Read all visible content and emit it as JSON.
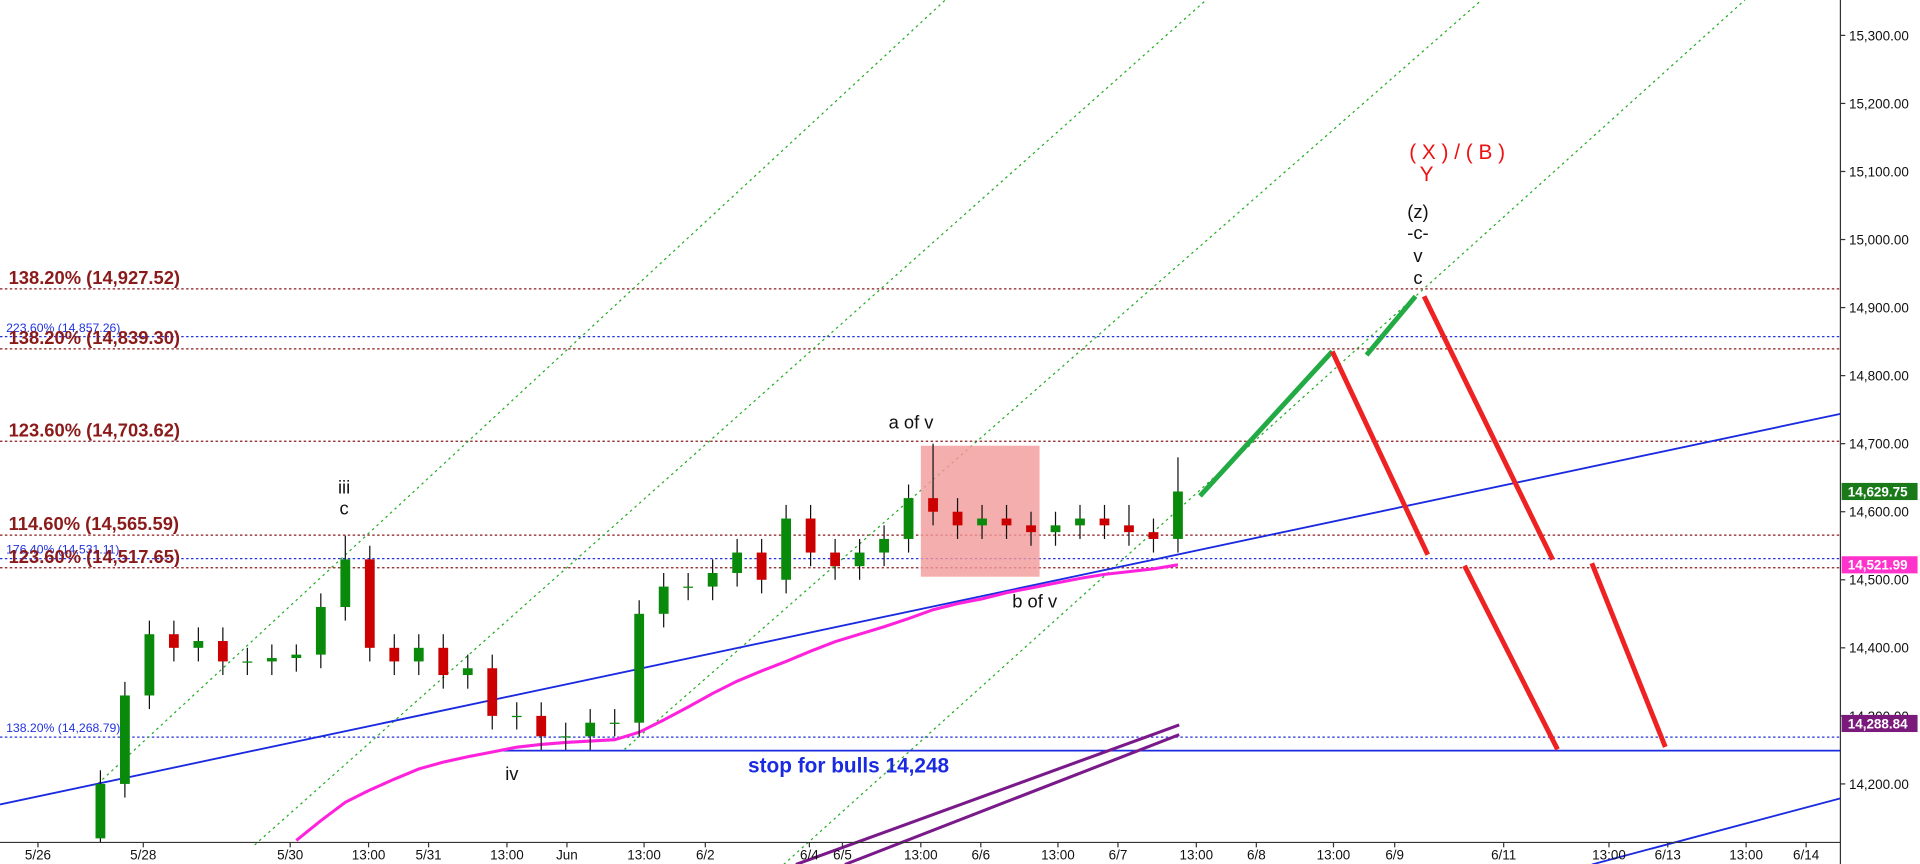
{
  "chart_data": {
    "type": "candlestick",
    "ylim": [
      14114,
      15352
    ],
    "yticks": [
      {
        "value": 14200,
        "label": "14,200.00"
      },
      {
        "value": 14300,
        "label": "14,300.00"
      },
      {
        "value": 14400,
        "label": "14,400.00"
      },
      {
        "value": 14500,
        "label": "14,500.00"
      },
      {
        "value": 14600,
        "label": "14,600.00"
      },
      {
        "value": 14700,
        "label": "14,700.00"
      },
      {
        "value": 14800,
        "label": "14,800.00"
      },
      {
        "value": 14900,
        "label": "14,900.00"
      },
      {
        "value": 15000,
        "label": "15,000.00"
      },
      {
        "value": 15100,
        "label": "15,100.00"
      },
      {
        "value": 15200,
        "label": "15,200.00"
      },
      {
        "value": 15300,
        "label": "15,300.00"
      }
    ],
    "x_tick_labels": [
      "5/26",
      "5/28",
      "5/30",
      "13:00",
      "5/31",
      "13:00",
      "Jun",
      "13:00",
      "6/2",
      "6/4",
      "6/5",
      "13:00",
      "6/6",
      "13:00",
      "6/7",
      "13:00",
      "6/8",
      "13:00",
      "6/9",
      "6/11",
      "13:00",
      "6/13",
      "13:00",
      "6/14"
    ],
    "open": [
      14120,
      14200,
      14330,
      14420,
      14400,
      14410,
      14380,
      14380,
      14385,
      14390,
      14460,
      14530,
      14400,
      14380,
      14400,
      14360,
      14370,
      14300,
      14300,
      14270,
      14270,
      14290,
      14290,
      14450,
      14490,
      14490,
      14510,
      14540,
      14500,
      14590,
      14540,
      14520,
      14540,
      14560,
      14620,
      14600,
      14580,
      14590,
      14580,
      14570,
      14580,
      14590,
      14580,
      14570,
      14560
    ],
    "high": [
      14220,
      14350,
      14440,
      14440,
      14430,
      14430,
      14400,
      14405,
      14405,
      14480,
      14565,
      14550,
      14420,
      14420,
      14420,
      14390,
      14390,
      14320,
      14320,
      14290,
      14310,
      14310,
      14470,
      14510,
      14510,
      14530,
      14560,
      14560,
      14610,
      14610,
      14560,
      14560,
      14580,
      14640,
      14700,
      14620,
      14610,
      14610,
      14600,
      14600,
      14610,
      14610,
      14610,
      14590,
      14680
    ],
    "low": [
      14114,
      14180,
      14310,
      14380,
      14380,
      14360,
      14360,
      14360,
      14365,
      14370,
      14440,
      14380,
      14360,
      14360,
      14340,
      14340,
      14280,
      14280,
      14250,
      14250,
      14250,
      14270,
      14270,
      14430,
      14470,
      14470,
      14490,
      14480,
      14480,
      14520,
      14500,
      14500,
      14520,
      14540,
      14580,
      14560,
      14560,
      14560,
      14550,
      14550,
      14560,
      14560,
      14550,
      14540,
      14540
    ],
    "close": [
      14200,
      14330,
      14420,
      14400,
      14410,
      14380,
      14380,
      14385,
      14390,
      14460,
      14530,
      14400,
      14380,
      14400,
      14360,
      14370,
      14300,
      14300,
      14270,
      14270,
      14290,
      14290,
      14450,
      14490,
      14490,
      14510,
      14540,
      14500,
      14590,
      14540,
      14520,
      14540,
      14560,
      14620,
      14600,
      14580,
      14590,
      14580,
      14570,
      14580,
      14590,
      14580,
      14570,
      14560,
      14629.75
    ],
    "up_color": "#0a8a0a",
    "down_color": "#cc0000",
    "moving_average": {
      "color": "#ff22dd",
      "values": [
        null,
        null,
        null,
        null,
        null,
        null,
        null,
        null,
        14117,
        14146,
        14173,
        14191,
        14207,
        14222,
        14232,
        14240,
        14247,
        14254,
        14258,
        14261,
        14263,
        14265,
        14276,
        14294,
        14313,
        14333,
        14351,
        14366,
        14380,
        14395,
        14409,
        14420,
        14431,
        14443,
        14456,
        14465,
        14472,
        14481,
        14488,
        14495,
        14502,
        14508,
        14512,
        14516,
        14521.99
      ]
    },
    "fib_levels": [
      {
        "label": "138.20% (14,927.52)",
        "value": 14927.52
      },
      {
        "label": "138.20% (14,839.30)",
        "value": 14839.3
      },
      {
        "label": "123.60% (14,703.62)",
        "value": 14703.62
      },
      {
        "label": "114.60% (14,565.59)",
        "value": 14565.59
      },
      {
        "label": "123.60% (14,517.65)",
        "value": 14517.65
      }
    ],
    "fib_color": "#8b1a1a",
    "minor_levels": [
      {
        "label": "223.60% (14,857.26)",
        "value": 14857.26
      },
      {
        "label": "176.40% (14,531.11)",
        "value": 14531.11
      },
      {
        "label": "138.20% (14,268.79)",
        "value": 14268.79
      }
    ],
    "minor_color": "#2233dd",
    "price_markers": [
      {
        "value": 14629.75,
        "label": "14,629.75",
        "color": "#1a7a1a"
      },
      {
        "value": 14521.99,
        "label": "14,521.99",
        "color": "#ff33cc"
      },
      {
        "value": 14288.84,
        "label": "14,288.84",
        "color": "#7a1a7a"
      }
    ],
    "annotations": [
      "iii",
      "c",
      "iv",
      "a of v",
      "b of v",
      "stop for bulls 14,248",
      "( X ) / ( B )",
      "Y",
      "(z)",
      "-c-",
      "v",
      "c"
    ]
  }
}
